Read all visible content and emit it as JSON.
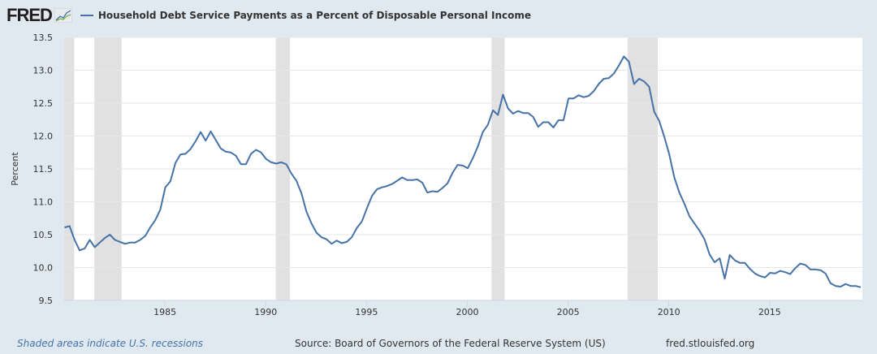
{
  "header": {
    "logo_text": "FRED",
    "series_title": "Household Debt Service Payments as a Percent of Disposable Personal Income"
  },
  "footer": {
    "recession_note": "Shaded areas indicate U.S. recessions",
    "source": "Source: Board of Governors of the Federal Reserve System (US)",
    "site": "fred.stlouisfed.org"
  },
  "colors": {
    "line": "#4572a7",
    "recession": "#e1e1e1",
    "background": "#e1e9f0",
    "grid": "#e6e6e6"
  },
  "chart_data": {
    "type": "line",
    "title": "Household Debt Service Payments as a Percent of Disposable Personal Income",
    "xlabel": "",
    "ylabel": "Percent",
    "frequency": "quarterly",
    "start": 1980.0,
    "xlim": [
      1980.0,
      2019.6
    ],
    "ylim": [
      9.5,
      13.5
    ],
    "yticks": [
      "9.5",
      "10.0",
      "10.5",
      "11.0",
      "11.5",
      "12.0",
      "12.5",
      "13.0",
      "13.5"
    ],
    "xticks": [
      "1985",
      "1990",
      "1995",
      "2000",
      "2005",
      "2010",
      "2015"
    ],
    "grid": true,
    "recessions": [
      [
        1980.0,
        1980.5
      ],
      [
        1981.5,
        1982.85
      ],
      [
        1990.5,
        1991.2
      ],
      [
        2001.2,
        2001.85
      ],
      [
        2007.95,
        2009.45
      ]
    ],
    "series": [
      {
        "name": "Household Debt Service Payments as a Percent of Disposable Personal Income",
        "values": [
          10.61,
          10.63,
          10.42,
          10.26,
          10.29,
          10.42,
          10.31,
          10.38,
          10.45,
          10.5,
          10.42,
          10.39,
          10.36,
          10.38,
          10.38,
          10.42,
          10.48,
          10.61,
          10.72,
          10.88,
          11.22,
          11.31,
          11.59,
          11.72,
          11.73,
          11.8,
          11.92,
          12.06,
          11.93,
          12.07,
          11.94,
          11.81,
          11.76,
          11.75,
          11.7,
          11.57,
          11.57,
          11.73,
          11.79,
          11.75,
          11.65,
          11.6,
          11.58,
          11.6,
          11.57,
          11.43,
          11.32,
          11.13,
          10.85,
          10.67,
          10.53,
          10.46,
          10.43,
          10.36,
          10.41,
          10.37,
          10.39,
          10.46,
          10.6,
          10.7,
          10.9,
          11.09,
          11.19,
          11.22,
          11.24,
          11.27,
          11.32,
          11.37,
          11.33,
          11.33,
          11.34,
          11.29,
          11.14,
          11.16,
          11.15,
          11.21,
          11.28,
          11.44,
          11.56,
          11.55,
          11.51,
          11.66,
          11.84,
          12.06,
          12.17,
          12.39,
          12.32,
          12.63,
          12.42,
          12.34,
          12.38,
          12.35,
          12.35,
          12.29,
          12.14,
          12.21,
          12.21,
          12.13,
          12.24,
          12.24,
          12.57,
          12.57,
          12.62,
          12.59,
          12.61,
          12.68,
          12.79,
          12.87,
          12.88,
          12.95,
          13.07,
          13.21,
          13.13,
          12.79,
          12.87,
          12.83,
          12.75,
          12.37,
          12.23,
          11.99,
          11.72,
          11.37,
          11.14,
          10.97,
          10.78,
          10.67,
          10.56,
          10.43,
          10.2,
          10.08,
          10.14,
          9.83,
          10.19,
          10.11,
          10.07,
          10.07,
          9.98,
          9.91,
          9.87,
          9.85,
          9.92,
          9.91,
          9.95,
          9.93,
          9.9,
          9.99,
          10.06,
          10.04,
          9.97,
          9.97,
          9.96,
          9.91,
          9.76,
          9.72,
          9.71,
          9.75,
          9.72,
          9.72,
          9.7
        ]
      }
    ]
  }
}
